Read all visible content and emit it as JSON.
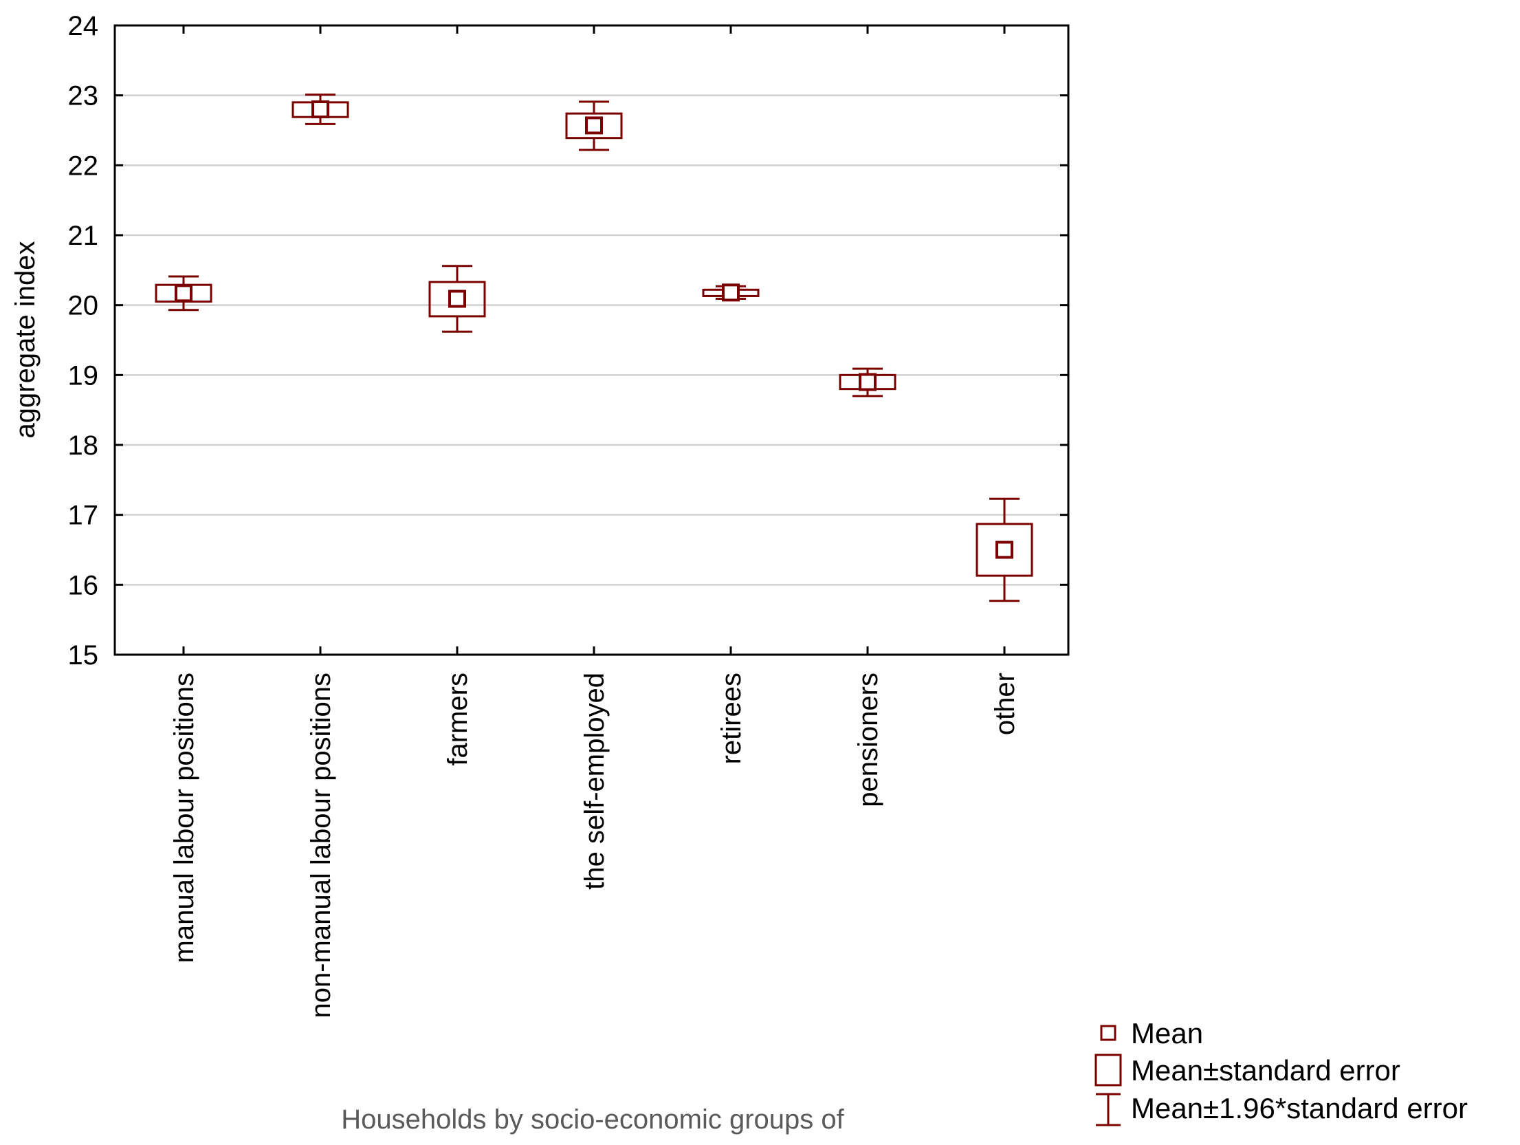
{
  "chart_data": {
    "type": "box-whisker",
    "title": "",
    "xlabel": "Households by socio-economic groups of",
    "ylabel": "aggregate index",
    "ylim": [
      15,
      24
    ],
    "yticks": [
      "15",
      "16",
      "17",
      "18",
      "19",
      "20",
      "21",
      "22",
      "23",
      "24"
    ],
    "grid": true,
    "color": "#7b0000",
    "categories": [
      "manual labour positions",
      "non-manual labour positions",
      "farmers",
      "the self-employed",
      "retirees",
      "pensioners",
      "other"
    ],
    "mean": [
      20.17,
      22.8,
      20.09,
      22.57,
      20.18,
      18.9,
      16.5
    ],
    "se_low": [
      20.05,
      22.69,
      19.84,
      22.39,
      20.13,
      18.8,
      16.13
    ],
    "se_high": [
      20.29,
      22.9,
      20.33,
      22.74,
      20.22,
      19.0,
      16.87
    ],
    "ci_low": [
      19.93,
      22.59,
      19.62,
      22.22,
      20.09,
      18.7,
      15.77
    ],
    "ci_high": [
      20.41,
      23.01,
      20.56,
      22.91,
      20.27,
      19.09,
      17.23
    ],
    "legend": {
      "position": "bottom-right",
      "items": [
        "Mean",
        "Mean±standard error",
        "Mean±1.96*standard error"
      ]
    }
  }
}
